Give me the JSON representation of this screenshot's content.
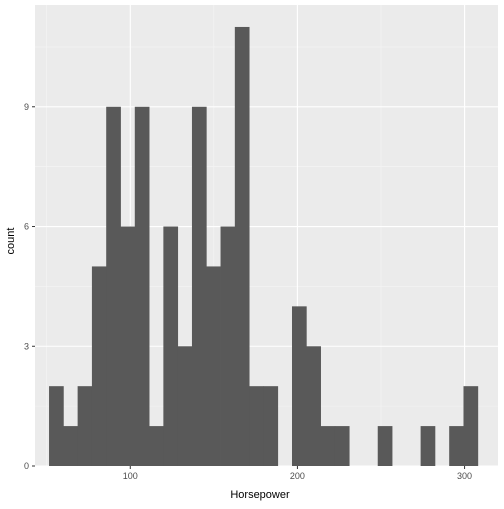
{
  "chart_data": {
    "type": "bar",
    "subtype": "histogram",
    "xlabel": "Horsepower",
    "ylabel": "count",
    "xlim": [
      43,
      320
    ],
    "ylim": [
      0,
      11.55
    ],
    "x_ticks": [
      100,
      200,
      300
    ],
    "y_ticks": [
      0,
      3,
      6,
      9
    ],
    "x_tick_labels": [
      "100",
      "200",
      "300"
    ],
    "y_tick_labels": [
      "0",
      "3",
      "6",
      "9"
    ],
    "grid": true,
    "legend": "none",
    "bin_start": 51.4,
    "bin_width": 8.55,
    "counts": [
      2,
      1,
      2,
      5,
      9,
      6,
      9,
      1,
      6,
      3,
      9,
      5,
      6,
      11,
      2,
      2,
      0,
      4,
      3,
      1,
      1,
      0,
      0,
      1,
      0,
      0,
      1,
      0,
      1,
      2
    ],
    "colors": {
      "panel_background": "#ebebeb",
      "grid_major": "#ffffff",
      "grid_minor": "#f5f5f5",
      "bar_fill": "#595959",
      "axis_text": "#4d4d4d",
      "axis_title": "#000000",
      "tick": "#333333"
    }
  }
}
